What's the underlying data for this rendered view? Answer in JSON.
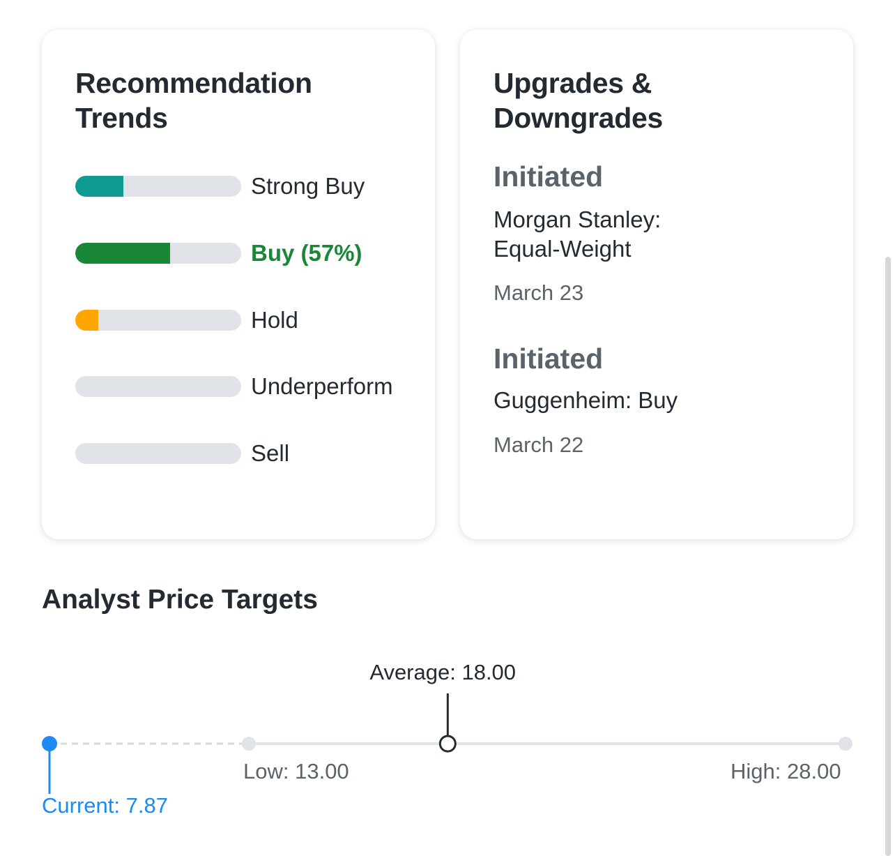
{
  "recommendation_trends": {
    "title": "Recommendation Trends",
    "items": [
      {
        "label": "Strong Buy",
        "fraction": 0.29,
        "color": "#0f9b93",
        "active": false
      },
      {
        "label": "Buy (57%)",
        "fraction": 0.57,
        "color": "#1a8737",
        "active": true
      },
      {
        "label": "Hold",
        "fraction": 0.14,
        "color": "#ffa700",
        "active": false
      },
      {
        "label": "Underperform",
        "fraction": 0,
        "color": "#e0e4e9",
        "active": false
      },
      {
        "label": "Sell",
        "fraction": 0,
        "color": "#e0e4e9",
        "active": false
      }
    ]
  },
  "upgrades_downgrades": {
    "title": "Upgrades & Downgrades",
    "entries": [
      {
        "action": "Initiated",
        "firm_rating": "Morgan Stanley: Equal-Weight",
        "date": "March 23"
      },
      {
        "action": "Initiated",
        "firm_rating": "Guggenheim: Buy",
        "date": "March 22"
      }
    ]
  },
  "analyst_price_targets": {
    "title": "Analyst Price Targets",
    "current": 7.87,
    "low": 13.0,
    "average": 18.0,
    "high": 28.0,
    "labels": {
      "current": "Current: 7.87",
      "low": "Low: 13.00",
      "average": "Average: 18.00",
      "high": "High: 28.00"
    },
    "colors": {
      "current": "#1d89f2",
      "line": "#e0e4e9",
      "marker": "#232a31"
    }
  }
}
